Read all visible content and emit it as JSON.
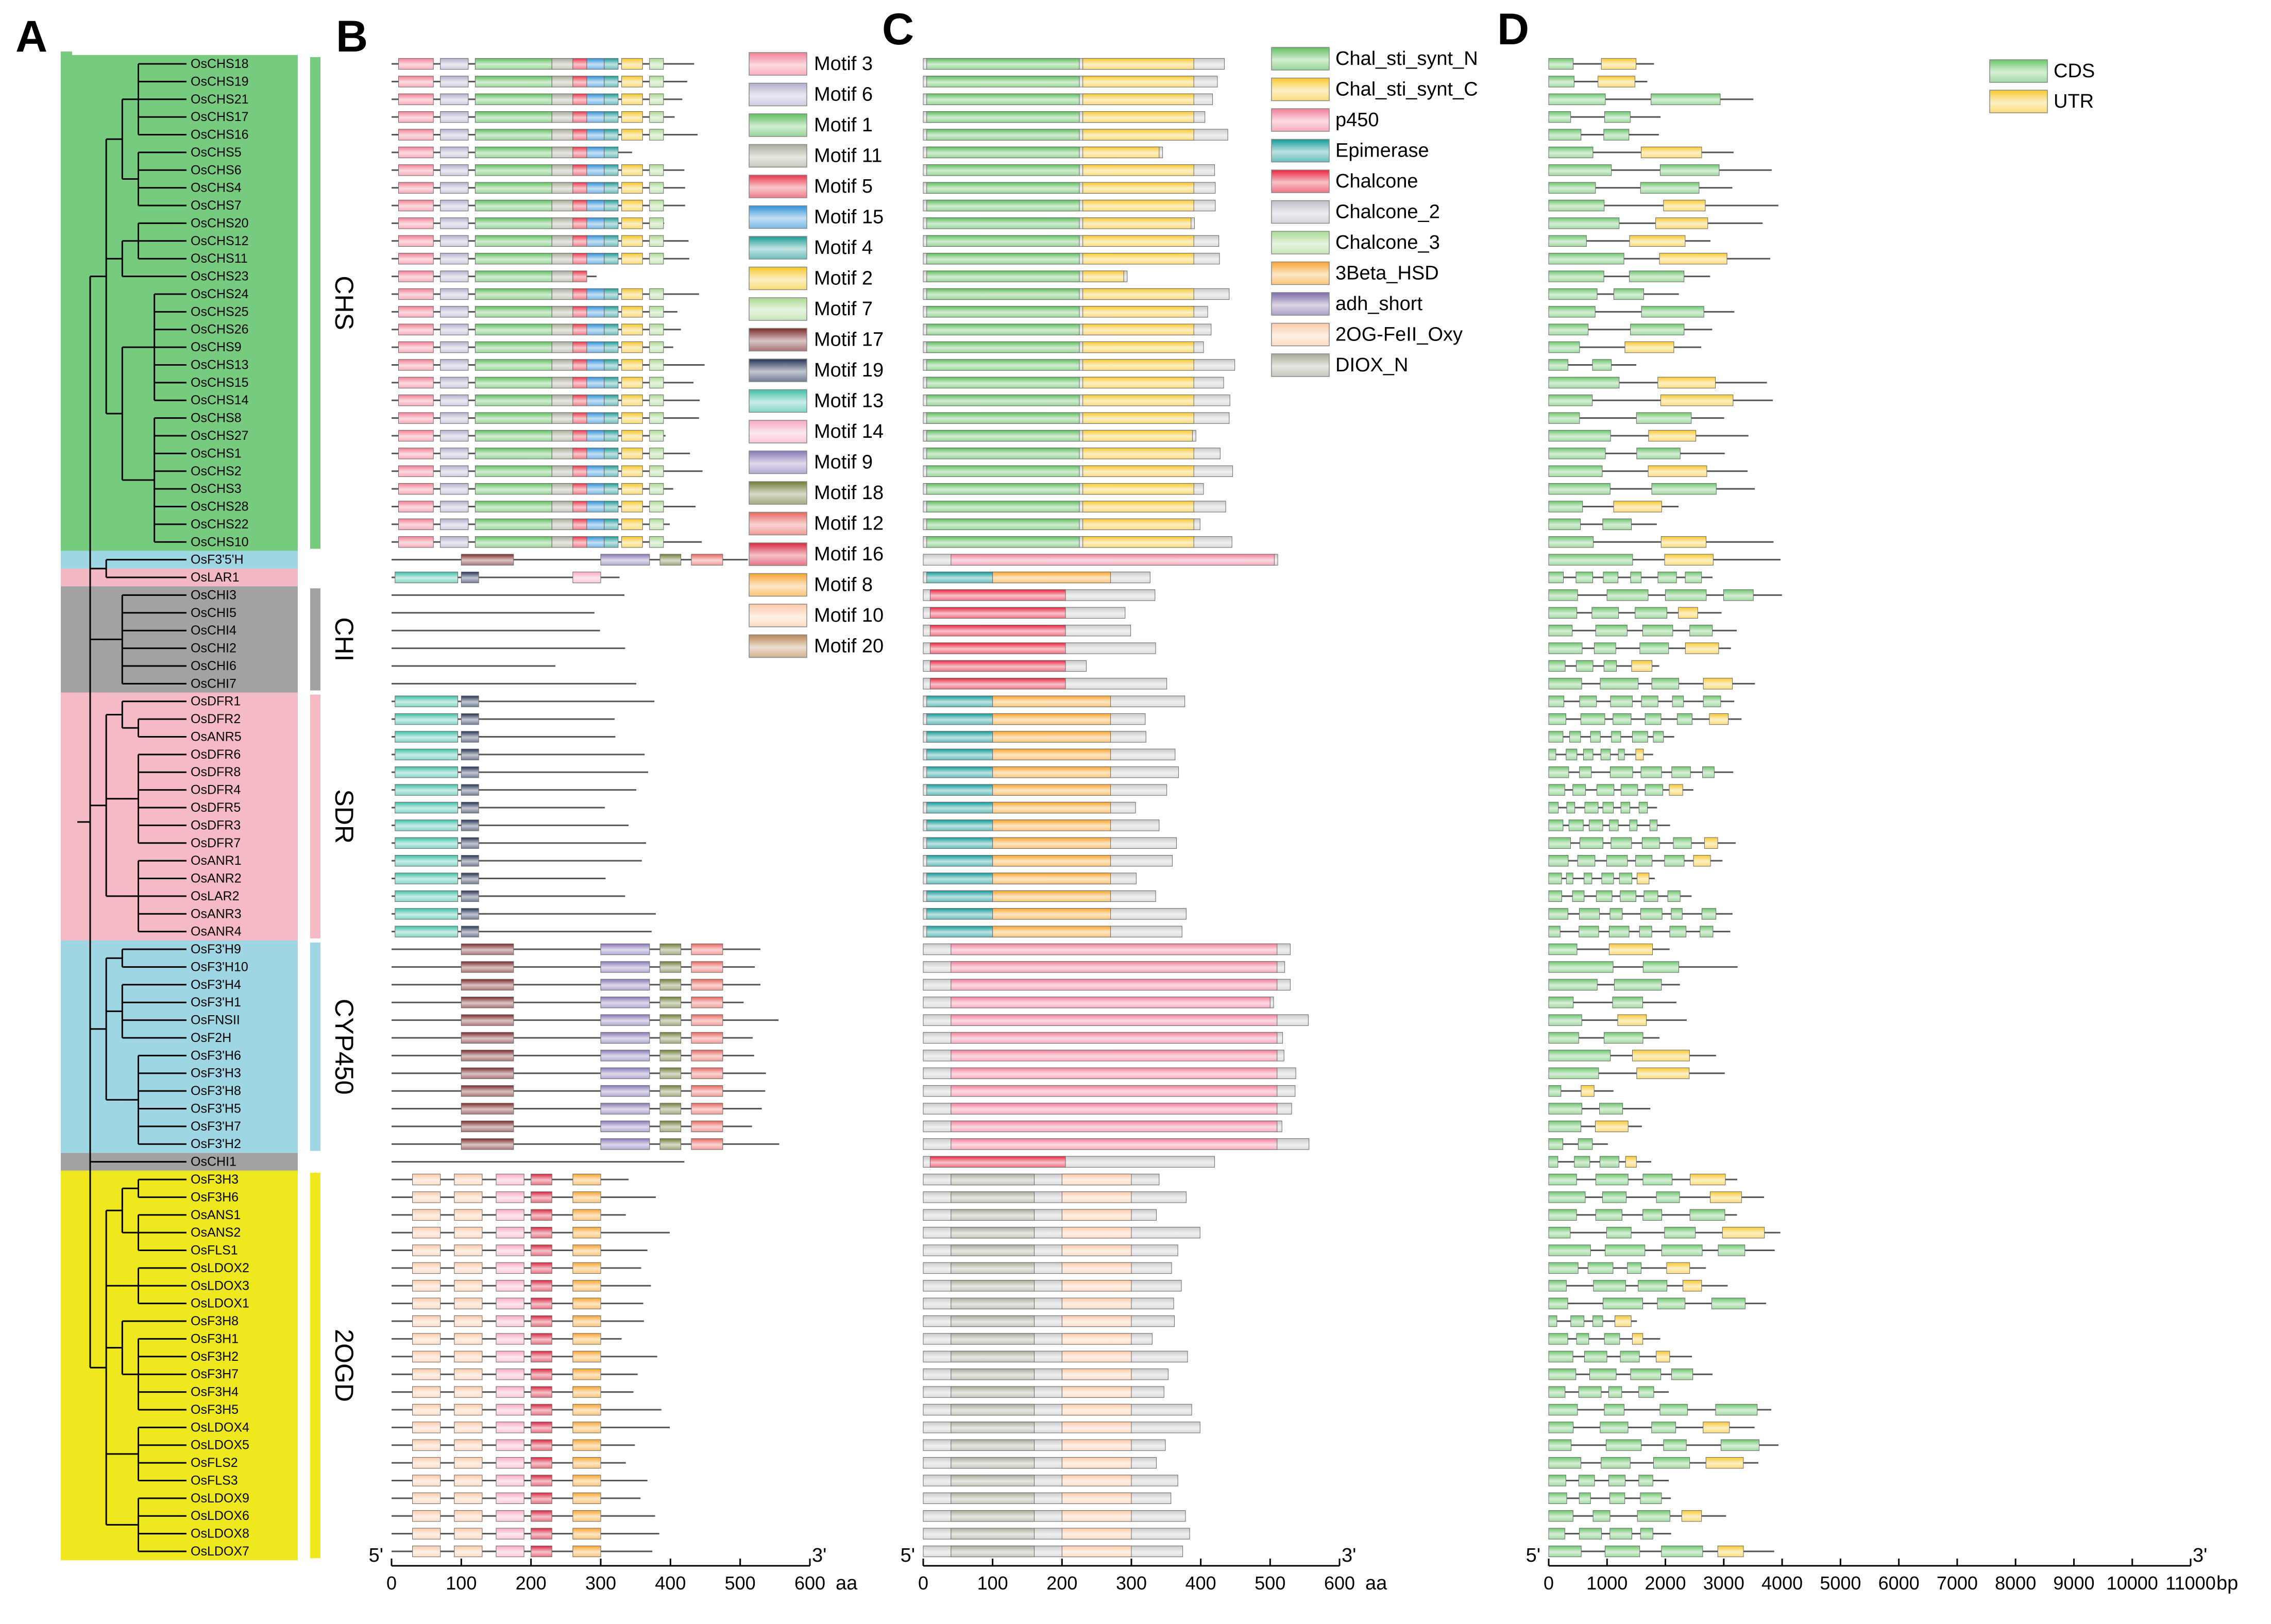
{
  "panel_letters": [
    "A",
    "B",
    "C",
    "D"
  ],
  "gene_names": [
    "OsCHS18",
    "OsCHS19",
    "OsCHS21",
    "OsCHS17",
    "OsCHS16",
    "OsCHS5",
    "OsCHS6",
    "OsCHS4",
    "OsCHS7",
    "OsCHS20",
    "OsCHS12",
    "OsCHS11",
    "OsCHS23",
    "OsCHS24",
    "OsCHS25",
    "OsCHS26",
    "OsCHS9",
    "OsCHS13",
    "OsCHS15",
    "OsCHS14",
    "OsCHS8",
    "OsCHS27",
    "OsCHS1",
    "OsCHS2",
    "OsCHS3",
    "OsCHS28",
    "OsCHS22",
    "OsCHS10",
    "OsF3'5'H",
    "OsLAR1",
    "OsCHI3",
    "OsCHI5",
    "OsCHI4",
    "OsCHI2",
    "OsCHI6",
    "OsCHI7",
    "OsDFR1",
    "OsDFR2",
    "OsANR5",
    "OsDFR6",
    "OsDFR8",
    "OsDFR4",
    "OsDFR5",
    "OsDFR3",
    "OsDFR7",
    "OsANR1",
    "OsANR2",
    "OsLAR2",
    "OsANR3",
    "OsANR4",
    "OsF3'H9",
    "OsF3'H10",
    "OsF3'H4",
    "OsF3'H1",
    "OsFNSII",
    "OsF2H",
    "OsF3'H6",
    "OsF3'H3",
    "OsF3'H8",
    "OsF3'H5",
    "OsF3'H7",
    "OsF3'H2",
    "OsCHI1",
    "OsF3H3",
    "OsF3H6",
    "OsANS1",
    "OsANS2",
    "OsFLS1",
    "OsLDOX2",
    "OsLDOX3",
    "OsLDOX1",
    "OsF3H8",
    "OsF3H1",
    "OsF3H2",
    "OsF3H7",
    "OsF3H4",
    "OsF3H5",
    "OsLDOX4",
    "OsLDOX5",
    "OsFLS2",
    "OsFLS3",
    "OsLDOX9",
    "OsLDOX6",
    "OsLDOX8",
    "OsLDOX7"
  ],
  "families": [
    {
      "label": "CHS",
      "start": 0,
      "end": 27,
      "color": "#77cb7f",
      "bar": "#77cb7f"
    },
    {
      "label": "",
      "start": 28,
      "end": 28,
      "color": "#9fd6e4",
      "bar": ""
    },
    {
      "label": "",
      "start": 29,
      "end": 29,
      "color": "#f4b8c4",
      "bar": ""
    },
    {
      "label": "CHI",
      "start": 30,
      "end": 35,
      "color": "#a2a2a2",
      "bar": "#a2a2a2"
    },
    {
      "label": "SDR",
      "start": 36,
      "end": 49,
      "color": "#f6b9c6",
      "bar": "#f6b9c6"
    },
    {
      "label": "CYP450",
      "start": 50,
      "end": 61,
      "color": "#9fd6e4",
      "bar": "#9fd6e4"
    },
    {
      "label": "",
      "start": 62,
      "end": 62,
      "color": "#a2a2a2",
      "bar": ""
    },
    {
      "label": "2OGD",
      "start": 63,
      "end": 84,
      "color": "#efe81f",
      "bar": "#efe81f"
    }
  ],
  "motif_legend": [
    {
      "label": "Motif 3",
      "color": "#f27e94"
    },
    {
      "label": "Motif 6",
      "color": "#b2afcd"
    },
    {
      "label": "Motif 1",
      "color": "#5fbe5f"
    },
    {
      "label": "Motif 11",
      "color": "#a9a99a"
    },
    {
      "label": "Motif 5",
      "color": "#e8364a"
    },
    {
      "label": "Motif 15",
      "color": "#2e90d8"
    },
    {
      "label": "Motif 4",
      "color": "#1d9a96"
    },
    {
      "label": "Motif 2",
      "color": "#f5c728"
    },
    {
      "label": "Motif 7",
      "color": "#a9d991"
    },
    {
      "label": "Motif 17",
      "color": "#7a2b2d"
    },
    {
      "label": "Motif 19",
      "color": "#263556"
    },
    {
      "label": "Motif 13",
      "color": "#3dbfa6"
    },
    {
      "label": "Motif 14",
      "color": "#f7a9c1"
    },
    {
      "label": "Motif 9",
      "color": "#8a78b6"
    },
    {
      "label": "Motif 18",
      "color": "#6f7f3a"
    },
    {
      "label": "Motif 12",
      "color": "#e8655e"
    },
    {
      "label": "Motif 16",
      "color": "#d9253f"
    },
    {
      "label": "Motif 8",
      "color": "#f9a530"
    },
    {
      "label": "Motif 10",
      "color": "#fcc9a6"
    },
    {
      "label": "Motif 20",
      "color": "#b98656"
    }
  ],
  "domain_legend": [
    {
      "label": "Chal_sti_synt_N",
      "color": "#5fbe5f"
    },
    {
      "label": "Chal_sti_synt_C",
      "color": "#f7c830"
    },
    {
      "label": "p450",
      "color": "#f27e9a"
    },
    {
      "label": "Epimerase",
      "color": "#129a98"
    },
    {
      "label": "Chalcone",
      "color": "#e8243e"
    },
    {
      "label": "Chalcone_2",
      "color": "#bdbbc8"
    },
    {
      "label": "Chalcone_3",
      "color": "#a9d991"
    },
    {
      "label": "3Beta_HSD",
      "color": "#f9a530"
    },
    {
      "label": "adh_short",
      "color": "#7d6aa8"
    },
    {
      "label": "2OG-FeII_Oxy",
      "color": "#fcc9a6"
    },
    {
      "label": "DIOX_N",
      "color": "#a9a99a"
    }
  ],
  "gene_legend": [
    {
      "label": "CDS",
      "color": "#6cc56c"
    },
    {
      "label": "UTR",
      "color": "#f7c830"
    }
  ],
  "axes": {
    "motif": {
      "ticks": [
        0,
        100,
        200,
        300,
        400,
        500,
        600
      ],
      "max": 600,
      "start_label": "5'",
      "end_label": "3'",
      "unit": "aa"
    },
    "domain": {
      "ticks": [
        0,
        100,
        200,
        300,
        400,
        500,
        600
      ],
      "max": 600,
      "start_label": "5'",
      "end_label": "3'",
      "unit": "aa"
    },
    "gene": {
      "ticks": [
        0,
        1000,
        2000,
        3000,
        4000,
        5000,
        6000,
        7000,
        8000,
        9000,
        10000,
        11000
      ],
      "tick_labels": [
        "0",
        "1000",
        "2000",
        "3000",
        "4000",
        "5000",
        "6000",
        "7000",
        "8000",
        "9000",
        "10000",
        "11000"
      ],
      "max": 11000,
      "start_label": "5'",
      "end_label": "3'",
      "unit": "bp"
    }
  }
}
